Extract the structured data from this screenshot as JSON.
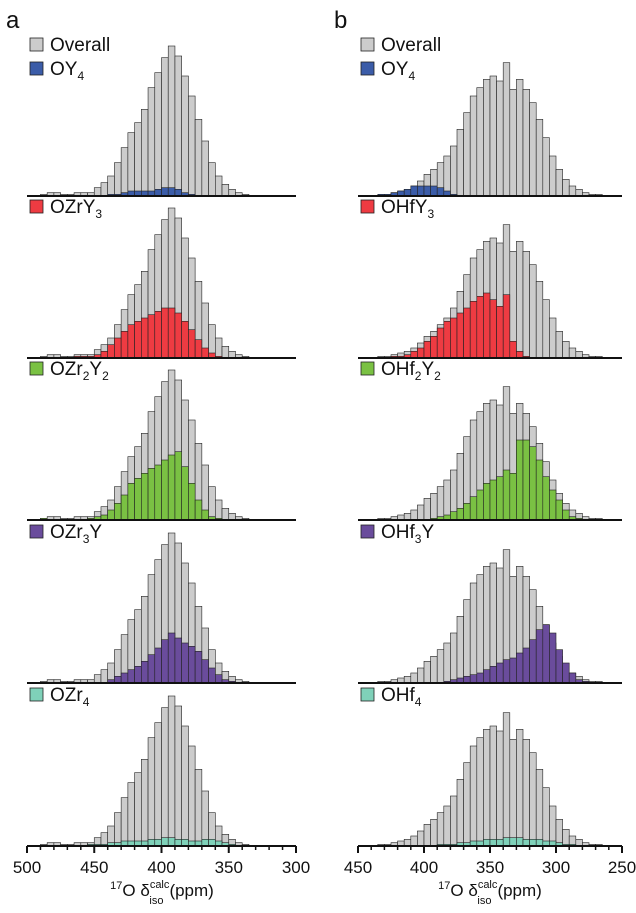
{
  "figure": {
    "panel_labels": [
      "a",
      "b"
    ],
    "xlabel": {
      "prefix": "17",
      "main": "O δ",
      "sup": "calc",
      "sub": "iso",
      "unit": "(ppm)"
    }
  },
  "colors": {
    "overall": "#cccccc",
    "OY4": "#3b5ca8",
    "M1Y3": "#ee3b42",
    "M2Y2": "#7ac143",
    "M3Y": "#6a4c9c",
    "M4": "#7fd1b9",
    "edge": "#222222"
  },
  "chart_data": [
    {
      "panel": "a",
      "type": "bar",
      "xlim": [
        500,
        300
      ],
      "xticks": [
        500,
        450,
        400,
        350,
        300
      ],
      "bin_start": 500,
      "bin_width": 5,
      "overall": [
        0,
        0,
        1,
        2,
        2,
        1,
        1,
        2,
        2,
        2,
        5,
        8,
        12,
        20,
        29,
        38,
        44,
        52,
        65,
        74,
        83,
        90,
        84,
        72,
        60,
        46,
        33,
        20,
        12,
        7,
        4,
        2,
        1,
        0,
        0,
        0,
        0,
        0,
        0,
        0
      ],
      "rows": [
        {
          "legend_main": "OY",
          "legend_sub": "4",
          "color_key": "OY4",
          "values": [
            0,
            0,
            0,
            0,
            0,
            0,
            0,
            0,
            0,
            0,
            0,
            0,
            1,
            1,
            2,
            3,
            3,
            3,
            3,
            4,
            5,
            5,
            4,
            2,
            1,
            0,
            0,
            0,
            0,
            0,
            0,
            0,
            0,
            0,
            0,
            0,
            0,
            0,
            0,
            0
          ]
        },
        {
          "legend_main": "OZrY",
          "legend_sub": "3",
          "color_key": "M1Y3",
          "values": [
            0,
            0,
            0,
            0,
            0,
            0,
            0,
            1,
            1,
            1,
            2,
            4,
            8,
            12,
            16,
            20,
            22,
            24,
            26,
            28,
            30,
            30,
            27,
            22,
            17,
            11,
            6,
            3,
            1,
            0,
            0,
            0,
            0,
            0,
            0,
            0,
            0,
            0,
            0,
            0
          ]
        },
        {
          "legend_main": "OZr",
          "legend_sub": "2",
          "legend_main2": "Y",
          "legend_sub2": "2",
          "color_key": "M2Y2",
          "values": [
            0,
            0,
            1,
            0,
            0,
            0,
            0,
            0,
            0,
            1,
            2,
            3,
            6,
            10,
            15,
            22,
            25,
            28,
            31,
            33,
            36,
            39,
            41,
            32,
            22,
            12,
            6,
            2,
            1,
            0,
            0,
            0,
            0,
            0,
            0,
            0,
            0,
            0,
            0,
            0
          ]
        },
        {
          "legend_main": "OZr",
          "legend_sub": "3",
          "legend_main2": "Y",
          "color_key": "M3Y",
          "values": [
            0,
            0,
            0,
            0,
            0,
            0,
            0,
            0,
            0,
            0,
            0,
            0,
            2,
            4,
            6,
            8,
            10,
            13,
            17,
            21,
            26,
            30,
            27,
            24,
            22,
            19,
            14,
            9,
            5,
            2,
            1,
            0,
            0,
            0,
            0,
            0,
            0,
            0,
            0,
            0
          ]
        },
        {
          "legend_main": "OZr",
          "legend_sub": "4",
          "color_key": "M4",
          "values": [
            0,
            0,
            0,
            0,
            0,
            0,
            0,
            0,
            0,
            1,
            1,
            1,
            2,
            2,
            3,
            3,
            3,
            3,
            4,
            4,
            5,
            5,
            4,
            4,
            3,
            3,
            4,
            4,
            3,
            2,
            1,
            0,
            0,
            0,
            0,
            0,
            0,
            0,
            0,
            0
          ]
        }
      ]
    },
    {
      "panel": "b",
      "type": "bar",
      "xlim": [
        450,
        250
      ],
      "xticks": [
        450,
        400,
        350,
        300,
        250
      ],
      "bin_start": 450,
      "bin_width": 5,
      "overall": [
        0,
        0,
        0,
        1,
        1,
        2,
        3,
        4,
        6,
        9,
        13,
        16,
        20,
        24,
        30,
        40,
        50,
        60,
        65,
        70,
        72,
        69,
        80,
        64,
        70,
        64,
        56,
        46,
        35,
        24,
        16,
        10,
        6,
        4,
        2,
        1,
        1,
        0,
        0,
        0
      ],
      "rows": [
        {
          "legend_main": "OY",
          "legend_sub": "4",
          "color_key": "OY4",
          "values": [
            0,
            0,
            0,
            1,
            1,
            2,
            3,
            4,
            6,
            6,
            6,
            6,
            5,
            3,
            1,
            0,
            0,
            0,
            0,
            0,
            0,
            0,
            0,
            0,
            0,
            0,
            0,
            0,
            0,
            0,
            0,
            0,
            0,
            0,
            0,
            0,
            0,
            0,
            0,
            0
          ]
        },
        {
          "legend_main": "OHfY",
          "legend_sub": "3",
          "color_key": "M1Y3",
          "values": [
            0,
            0,
            0,
            0,
            0,
            1,
            1,
            2,
            4,
            6,
            10,
            13,
            18,
            22,
            24,
            27,
            30,
            34,
            37,
            39,
            35,
            31,
            38,
            10,
            4,
            1,
            0,
            0,
            0,
            0,
            0,
            0,
            0,
            0,
            0,
            0,
            0,
            0,
            0,
            0
          ]
        },
        {
          "legend_main": "OHf",
          "legend_sub": "2",
          "legend_main2": "Y",
          "legend_sub2": "2",
          "color_key": "M2Y2",
          "values": [
            0,
            0,
            0,
            0,
            0,
            0,
            0,
            0,
            0,
            0,
            0,
            1,
            2,
            3,
            5,
            7,
            10,
            14,
            18,
            22,
            24,
            26,
            30,
            28,
            48,
            48,
            44,
            36,
            26,
            18,
            12,
            6,
            2,
            1,
            0,
            0,
            0,
            0,
            0,
            0
          ]
        },
        {
          "legend_main": "OHf",
          "legend_sub": "3",
          "legend_main2": "Y",
          "color_key": "M3Y",
          "values": [
            0,
            0,
            0,
            0,
            0,
            0,
            0,
            0,
            0,
            0,
            0,
            0,
            0,
            1,
            2,
            3,
            4,
            5,
            6,
            8,
            10,
            12,
            14,
            15,
            18,
            21,
            26,
            32,
            35,
            30,
            20,
            12,
            6,
            2,
            1,
            0,
            0,
            0,
            0,
            0
          ]
        },
        {
          "legend_main": "OHf",
          "legend_sub": "4",
          "color_key": "M4",
          "values": [
            0,
            0,
            0,
            0,
            0,
            0,
            0,
            0,
            0,
            0,
            0,
            0,
            1,
            1,
            1,
            2,
            2,
            3,
            3,
            4,
            4,
            4,
            5,
            5,
            5,
            4,
            4,
            4,
            3,
            3,
            2,
            1,
            1,
            0,
            0,
            0,
            0,
            0,
            0,
            0
          ]
        }
      ]
    }
  ]
}
